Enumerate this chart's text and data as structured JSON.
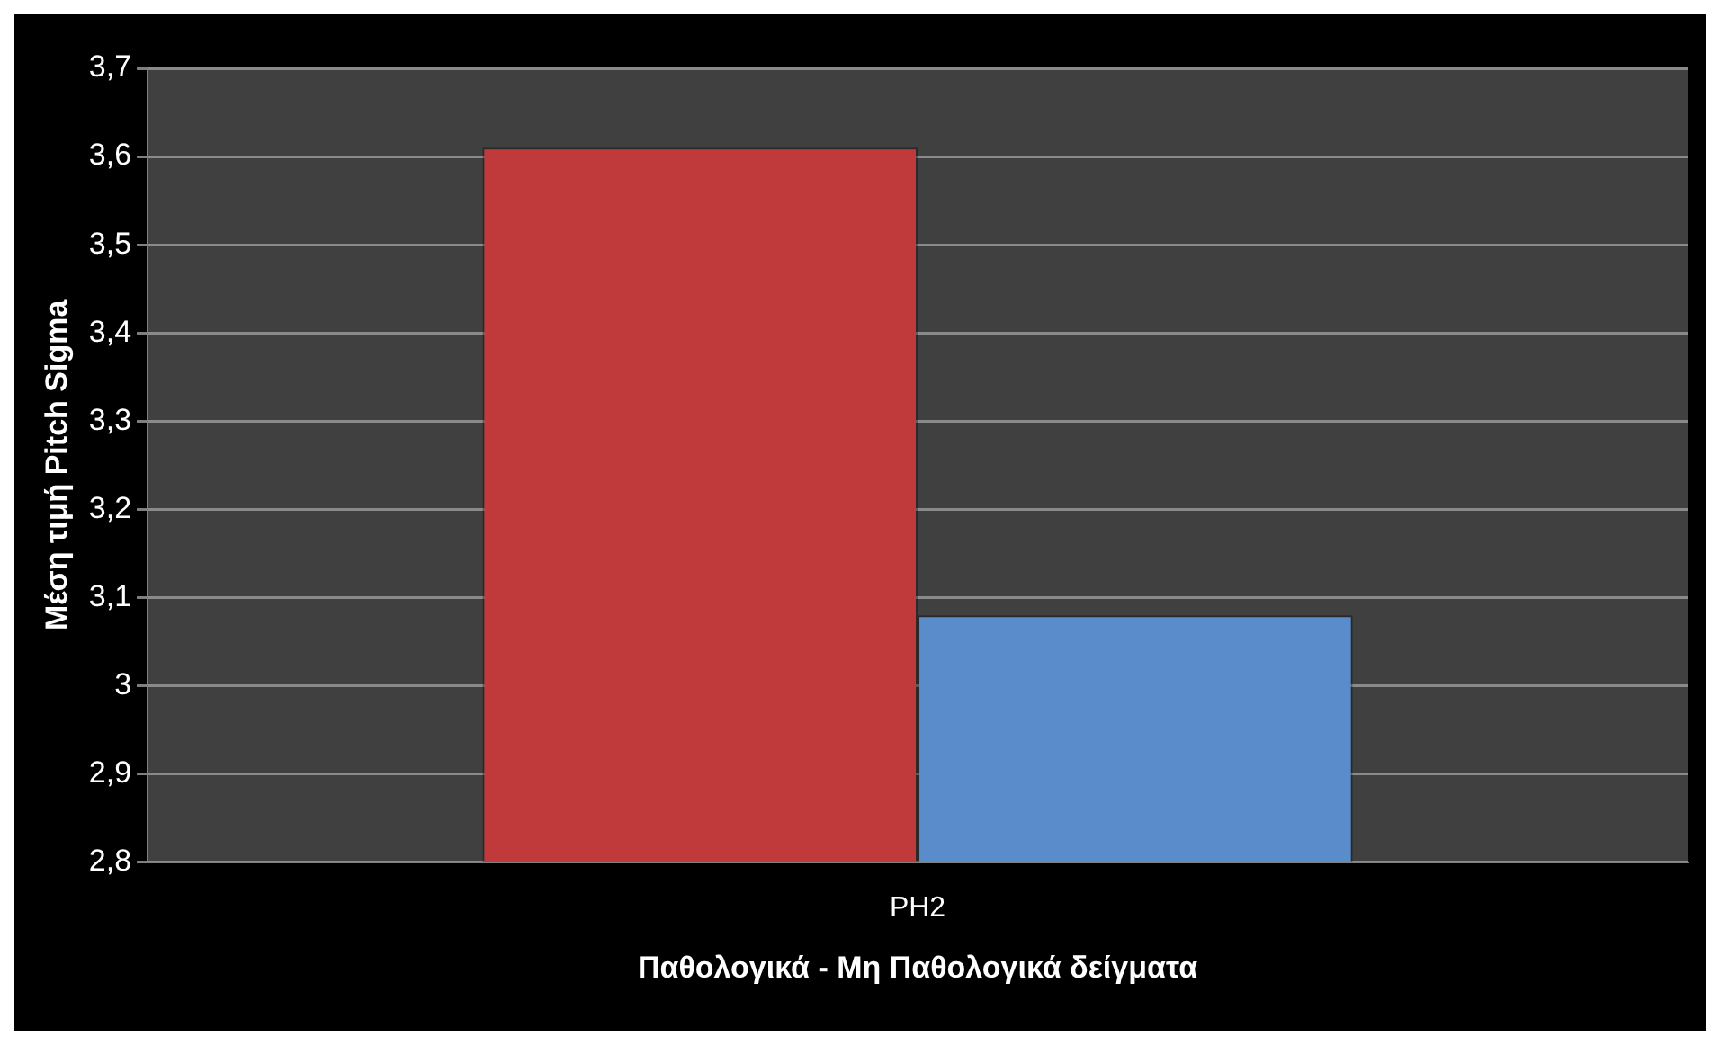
{
  "chart_data": {
    "type": "bar",
    "xlabel": "Παθολογικά - Μη Παθολογικά δείγματα",
    "ylabel": "Μέση τιμή Pitch Sigma",
    "categories": [
      "PH2"
    ],
    "series": [
      {
        "color": "#c0393b",
        "values": [
          3.61
        ]
      },
      {
        "color": "#5a8bcb",
        "values": [
          3.08
        ]
      }
    ],
    "ylim": [
      2.8,
      3.7
    ],
    "yticks": [
      {
        "value": 2.8,
        "label": "2,8"
      },
      {
        "value": 2.9,
        "label": "2,9"
      },
      3,
      {
        "value": 3.1,
        "label": "3,1"
      },
      {
        "value": 3.2,
        "label": "3,2"
      },
      {
        "value": 3.3,
        "label": "3,3"
      },
      {
        "value": 3.4,
        "label": "3,4"
      },
      {
        "value": 3.5,
        "label": "3,5"
      },
      {
        "value": 3.6,
        "label": "3,6"
      },
      {
        "value": 3.7,
        "label": "3,7"
      }
    ],
    "grid": "y",
    "legend": false
  }
}
